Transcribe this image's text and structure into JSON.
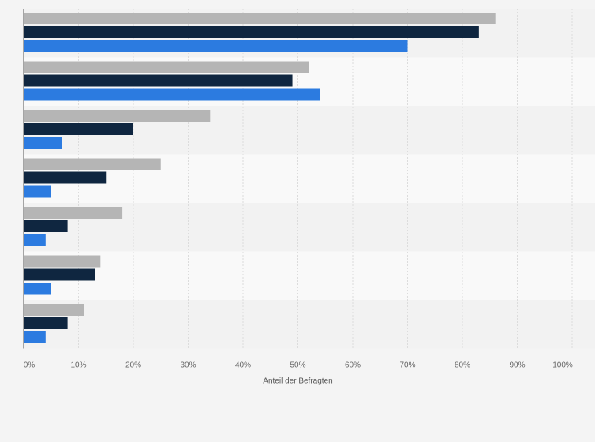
{
  "chart_data": {
    "type": "bar",
    "orientation": "horizontal",
    "categories": [
      "",
      "",
      "",
      "",
      "",
      "",
      ""
    ],
    "series": [
      {
        "color": "#b5b5b5",
        "values": [
          86,
          52,
          34,
          25,
          18,
          14,
          11
        ]
      },
      {
        "color": "#0f2640",
        "values": [
          83,
          49,
          20,
          15,
          8,
          13,
          8
        ]
      },
      {
        "color": "#2c7be0",
        "values": [
          70,
          54,
          7,
          5,
          4,
          5,
          4
        ]
      }
    ],
    "xlabel": "Anteil der Befragten",
    "xlim": [
      0,
      100
    ],
    "xticks": [
      "0%",
      "10%",
      "20%",
      "30%",
      "40%",
      "50%",
      "60%",
      "70%",
      "80%",
      "90%",
      "100%"
    ],
    "grid": true,
    "legend": "none"
  }
}
